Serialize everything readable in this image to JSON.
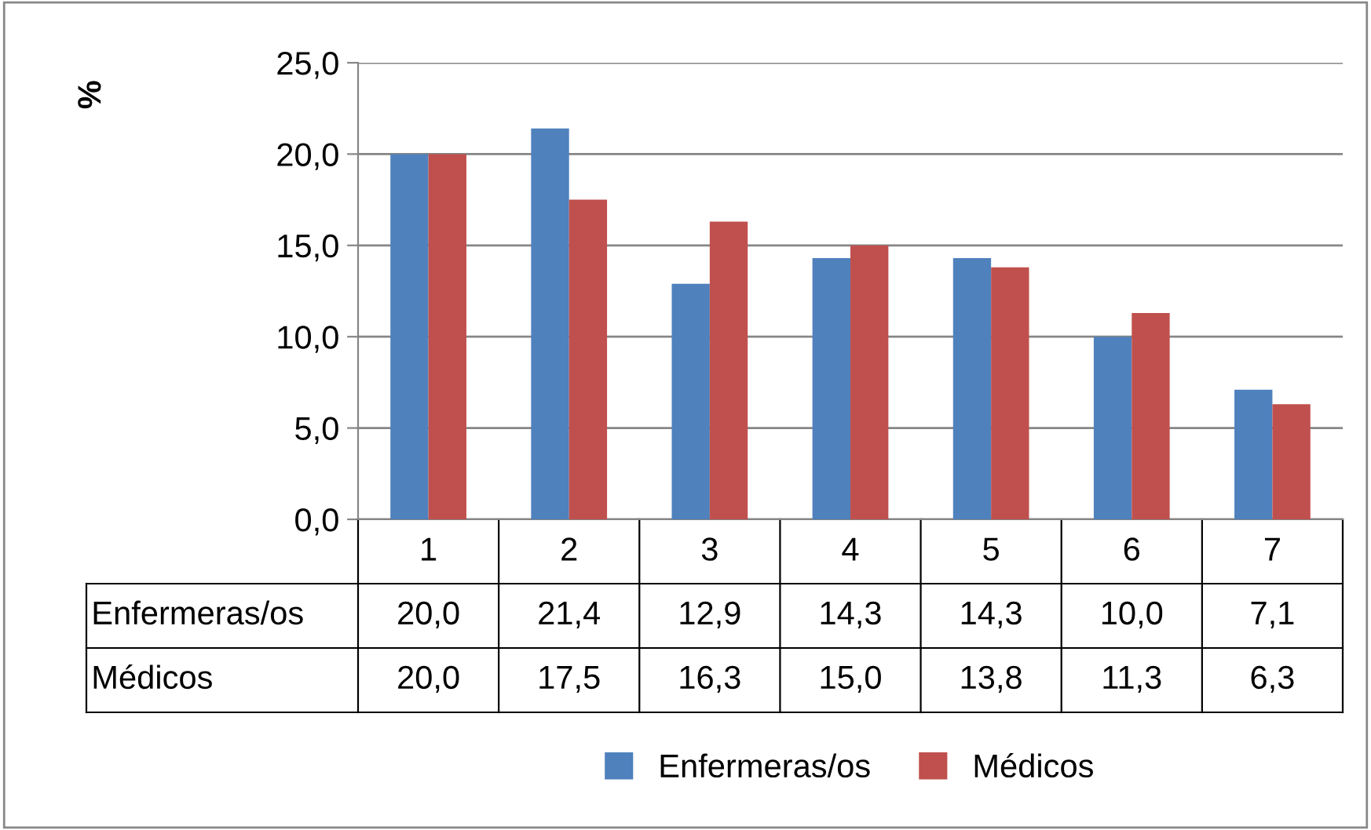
{
  "chart_data": {
    "type": "bar",
    "annotations": [
      "%"
    ],
    "categories": [
      "1",
      "2",
      "3",
      "4",
      "5",
      "6",
      "7"
    ],
    "series": [
      {
        "name": "Enfermeras/os",
        "color": "#4f81bd",
        "values": [
          20.0,
          21.4,
          12.9,
          14.3,
          14.3,
          10.0,
          7.1
        ],
        "value_labels": [
          "20,0",
          "21,4",
          "12,9",
          "14,3",
          "14,3",
          "10,0",
          "7,1"
        ]
      },
      {
        "name": "Médicos",
        "color": "#c0504d",
        "values": [
          20.0,
          17.5,
          16.3,
          15.0,
          13.8,
          11.3,
          6.3
        ],
        "value_labels": [
          "20,0",
          "17,5",
          "16,3",
          "15,0",
          "13,8",
          "11,3",
          "6,3"
        ]
      }
    ],
    "ylim": [
      0,
      25
    ],
    "yticks": [
      {
        "value": 0,
        "label": "0,0"
      },
      {
        "value": 5,
        "label": "5,0"
      },
      {
        "value": 10,
        "label": "10,0"
      },
      {
        "value": 15,
        "label": "15,0"
      },
      {
        "value": 20,
        "label": "20,0"
      },
      {
        "value": 25,
        "label": "25,0"
      }
    ],
    "grid": "y",
    "legend": "bottom"
  }
}
